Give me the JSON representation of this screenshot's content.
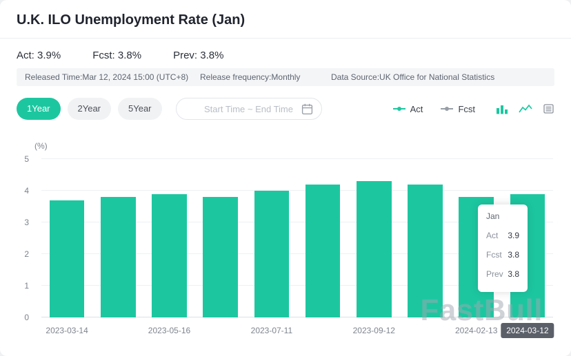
{
  "header": {
    "title": "U.K. ILO Unemployment Rate (Jan)"
  },
  "stats": {
    "act": "Act: 3.9%",
    "fcst": "Fcst: 3.8%",
    "prev": "Prev: 3.8%"
  },
  "info_bar": {
    "released_time": "Released Time:Mar 12, 2024 15:00 (UTC+8)",
    "release_frequency": "Release frequency:Monthly",
    "data_source": "Data Source:UK Office for National Statistics"
  },
  "controls": {
    "range_buttons": [
      {
        "label": "1Year",
        "active": true
      },
      {
        "label": "2Year",
        "active": false
      },
      {
        "label": "5Year",
        "active": false
      }
    ],
    "date_range_placeholder": "Start Time ~ End Time",
    "legend": [
      {
        "label": "Act",
        "color": "#1cc7a0"
      },
      {
        "label": "Fcst",
        "color": "#979da6"
      }
    ]
  },
  "chart_data": {
    "type": "bar",
    "title": "U.K. ILO Unemployment Rate (Jan)",
    "ylabel": "(%)",
    "ylim": [
      0,
      5
    ],
    "yticks": [
      0,
      1,
      2,
      3,
      4,
      5
    ],
    "bar_color": "#1cc7a0",
    "values": [
      3.7,
      3.8,
      3.9,
      3.8,
      4.0,
      4.2,
      4.3,
      4.2,
      3.8,
      3.9
    ],
    "x_ticks": [
      {
        "label": "2023-03-14",
        "bar": 0
      },
      {
        "label": "2023-05-16",
        "bar": 2
      },
      {
        "label": "2023-07-11",
        "bar": 4
      },
      {
        "label": "2023-09-12",
        "bar": 6
      },
      {
        "label": "2024-02-13",
        "bar": 8
      }
    ],
    "highlighted_x": {
      "label": "2024-03-12",
      "bar": 9
    },
    "legend_position": "top-right",
    "grid": true
  },
  "tooltip": {
    "title": "Jan",
    "rows": [
      {
        "label": "Act",
        "value": "3.9"
      },
      {
        "label": "Fcst",
        "value": "3.8"
      },
      {
        "label": "Prev",
        "value": "3.8"
      }
    ]
  },
  "watermark": "FastBull"
}
